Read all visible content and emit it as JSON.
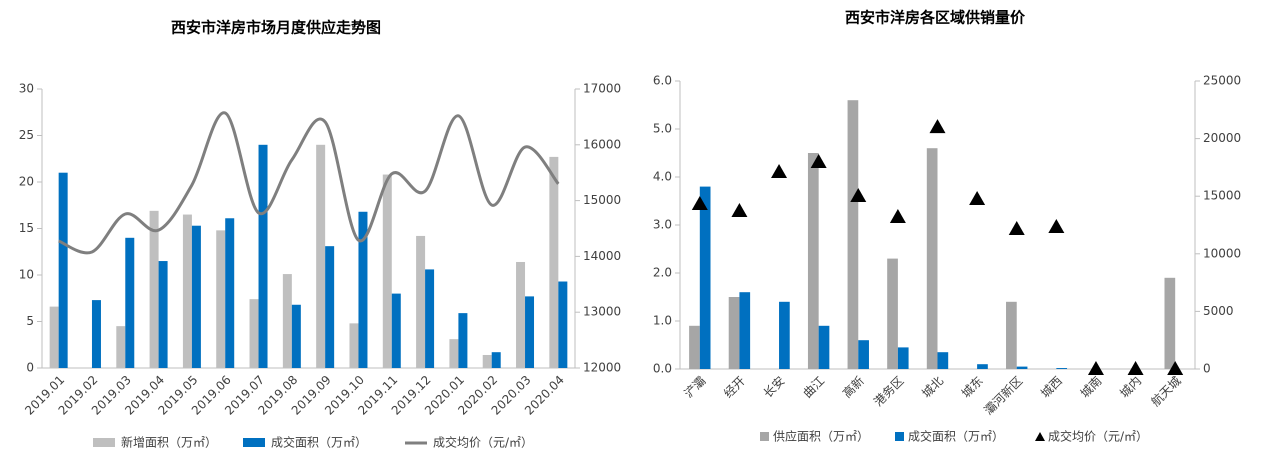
{
  "chart_data": [
    {
      "type": "bar",
      "title": "西安市洋房市场月度供应走势图",
      "categories": [
        "2019.01",
        "2019.02",
        "2019.03",
        "2019.04",
        "2019.05",
        "2019.06",
        "2019.07",
        "2019.08",
        "2019.09",
        "2019.10",
        "2019.11",
        "2019.12",
        "2020.01",
        "2020.02",
        "2020.03",
        "2020.04"
      ],
      "series": [
        {
          "name": "新增面积（万㎡）",
          "type": "bar",
          "color": "#bfbfbf",
          "values": [
            6.6,
            0,
            4.5,
            16.9,
            16.5,
            14.8,
            7.4,
            10.1,
            24,
            4.8,
            20.8,
            14.2,
            3.1,
            1.4,
            11.4,
            22.7
          ]
        },
        {
          "name": "成交面积（万㎡）",
          "type": "bar",
          "color": "#0070c0",
          "values": [
            21.0,
            7.3,
            14.0,
            11.5,
            15.3,
            16.1,
            24.0,
            6.8,
            13.1,
            16.8,
            8.0,
            10.6,
            5.9,
            1.7,
            7.7,
            9.3
          ]
        },
        {
          "name": "成交均价（元/㎡）",
          "type": "line",
          "smooth": true,
          "axis": "y2",
          "color": "#7f7f7f",
          "values": [
            14276,
            14079,
            14760,
            14470,
            15280,
            16570,
            14780,
            15730,
            16410,
            14290,
            15480,
            15170,
            16520,
            14920,
            15960,
            15300
          ]
        }
      ],
      "ylim": [
        0,
        30
      ],
      "yticks": [
        0,
        5,
        10,
        15,
        20,
        25,
        30
      ],
      "y2lim": [
        12000,
        17000
      ],
      "y2ticks": [
        12000,
        13000,
        14000,
        15000,
        16000,
        17000
      ]
    },
    {
      "type": "bar",
      "title": "西安市洋房各区域供销量价",
      "categories": [
        "浐灞",
        "经开",
        "长安",
        "曲江",
        "高新",
        "港务区",
        "城北",
        "城东",
        "灞河新区",
        "城西",
        "城南",
        "城内",
        "航天城"
      ],
      "series": [
        {
          "name": "供应面积（万㎡）",
          "type": "bar",
          "color": "#a6a6a6",
          "values": [
            0.9,
            1.5,
            0,
            4.5,
            5.6,
            2.3,
            4.6,
            0,
            1.4,
            0,
            0,
            0,
            1.9
          ]
        },
        {
          "name": "成交面积（万㎡）",
          "type": "bar",
          "color": "#0070c0",
          "values": [
            3.8,
            1.6,
            1.4,
            0.9,
            0.6,
            0.45,
            0.35,
            0.1,
            0.05,
            0.02,
            0,
            0,
            0
          ]
        },
        {
          "name": "成交均价（元/㎡）",
          "type": "scatter",
          "marker": "triangle",
          "axis": "y2",
          "color": "#000000",
          "values": [
            14320,
            13720,
            17100,
            17970,
            15020,
            13190,
            21000,
            14760,
            12150,
            12330,
            0,
            0,
            0
          ]
        }
      ],
      "ylim": [
        0,
        6
      ],
      "yticks": [
        {
          "value": 0,
          "label": "0.0"
        },
        {
          "value": 1,
          "label": "1.0"
        },
        {
          "value": 2,
          "label": "2.0"
        },
        {
          "value": 3,
          "label": "3.0"
        },
        {
          "value": 4,
          "label": "4.0"
        },
        {
          "value": 5,
          "label": "5.0"
        },
        {
          "value": 6,
          "label": "6.0"
        }
      ],
      "y2lim": [
        0,
        25000
      ],
      "y2ticks": [
        0,
        5000,
        10000,
        15000,
        20000,
        25000
      ]
    }
  ]
}
